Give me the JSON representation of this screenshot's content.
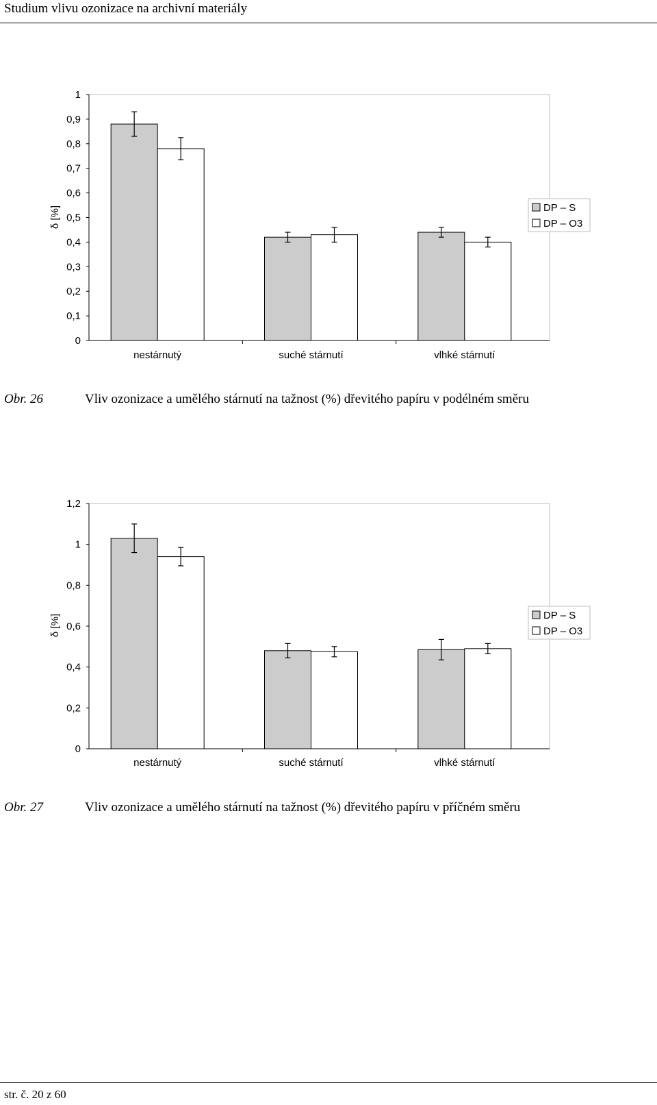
{
  "header": {
    "title": "Studium vlivu ozonizace na archivní materiály"
  },
  "charts": [
    {
      "caption_num": "Obr. 26",
      "caption_text": "Vliv ozonizace a umělého stárnutí na tažnost (%) dřevitého papíru v podélném směru"
    },
    {
      "caption_num": "Obr. 27",
      "caption_text": "Vliv ozonizace a umělého stárnutí na tažnost (%) dřevitého papíru v příčném směru"
    }
  ],
  "chart_data": [
    {
      "type": "bar",
      "categories": [
        "nestárnutý",
        "suché stárnutí",
        "vlhké stárnutí"
      ],
      "ylabel": "δ [%]",
      "ylim": [
        0,
        1
      ],
      "yticks": [
        "0",
        "0,1",
        "0,2",
        "0,3",
        "0,4",
        "0,5",
        "0,6",
        "0,7",
        "0,8",
        "0,9",
        "1"
      ],
      "legend_position": "right",
      "series": [
        {
          "name": "DP – S",
          "color": "#cccccc",
          "values": [
            0.88,
            0.42,
            0.44
          ],
          "errors": [
            0.05,
            0.02,
            0.02
          ]
        },
        {
          "name": "DP – O3",
          "color": "#ffffff",
          "values": [
            0.78,
            0.43,
            0.4
          ],
          "errors": [
            0.045,
            0.03,
            0.02
          ]
        }
      ]
    },
    {
      "type": "bar",
      "categories": [
        "nestárnutý",
        "suché stárnutí",
        "vlhké stárnutí"
      ],
      "ylabel": "δ [%]",
      "ylim": [
        0,
        1.2
      ],
      "yticks": [
        "0",
        "0,2",
        "0,4",
        "0,6",
        "0,8",
        "1",
        "1,2"
      ],
      "legend_position": "right",
      "series": [
        {
          "name": "DP – S",
          "color": "#cccccc",
          "values": [
            1.03,
            0.48,
            0.485
          ],
          "errors": [
            0.07,
            0.035,
            0.05
          ]
        },
        {
          "name": "DP – O3",
          "color": "#ffffff",
          "values": [
            0.94,
            0.475,
            0.49
          ],
          "errors": [
            0.045,
            0.025,
            0.025
          ]
        }
      ]
    }
  ],
  "footer": {
    "page": "str. č. 20 z 60"
  }
}
